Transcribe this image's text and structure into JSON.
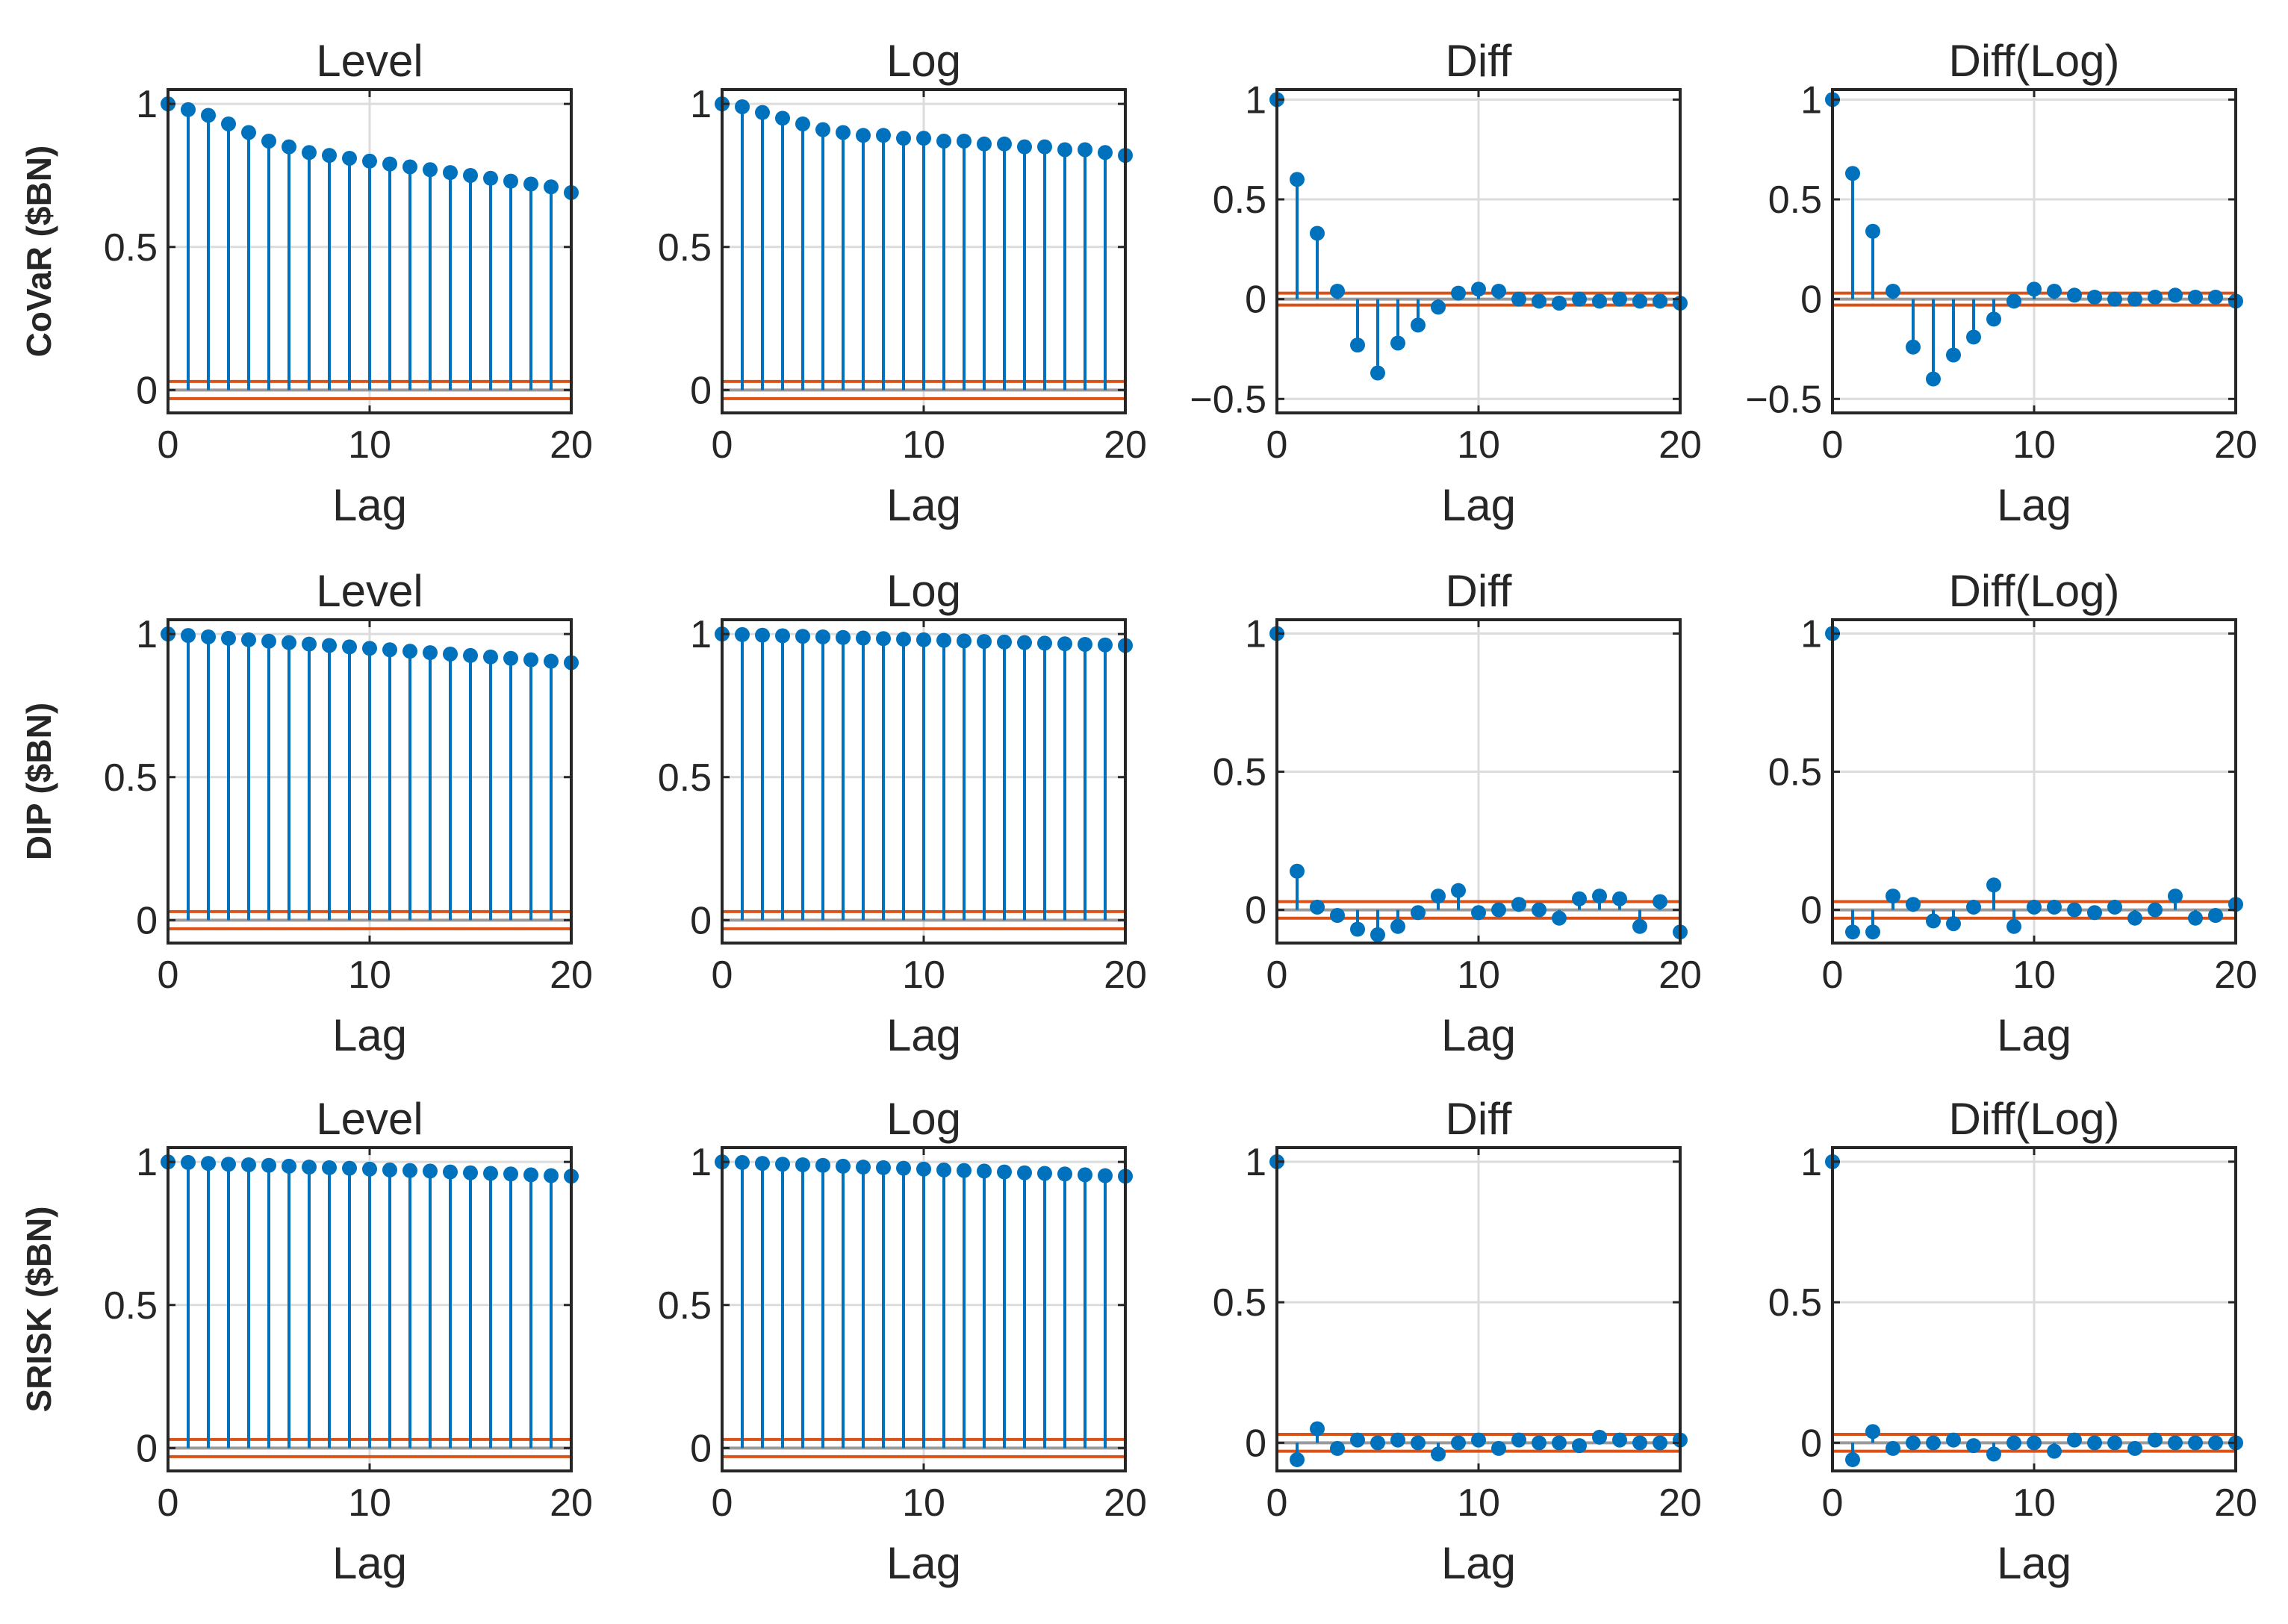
{
  "colors": {
    "stem": "#0072bd",
    "bounds": "#d95319",
    "zero_line": "#9a9a9a",
    "grid": "#dcdcdc",
    "axes": "#262626",
    "background": "#ffffff"
  },
  "chart_data": {
    "type": "stem",
    "layout": "3x4 grid of autocorrelation (stem) plots",
    "xlabel": "Lag",
    "xlim": [
      0,
      20
    ],
    "xticks": [
      0,
      10,
      20
    ],
    "x": [
      0,
      1,
      2,
      3,
      4,
      5,
      6,
      7,
      8,
      9,
      10,
      11,
      12,
      13,
      14,
      15,
      16,
      17,
      18,
      19,
      20
    ],
    "grid": true,
    "rows": [
      {
        "label": "CoVaR ($BN)",
        "panels": [
          {
            "title": "Level",
            "ylim": [
              -0.08,
              1.05
            ],
            "yticks": [
              0,
              0.5,
              1
            ],
            "ytick_labels": [
              "0",
              "0.5",
              "1"
            ],
            "bounds": [
              0.03,
              -0.03
            ],
            "values": [
              1.0,
              0.98,
              0.96,
              0.93,
              0.9,
              0.87,
              0.85,
              0.83,
              0.82,
              0.81,
              0.8,
              0.79,
              0.78,
              0.77,
              0.76,
              0.75,
              0.74,
              0.73,
              0.72,
              0.71,
              0.69
            ]
          },
          {
            "title": "Log",
            "ylim": [
              -0.08,
              1.05
            ],
            "yticks": [
              0,
              0.5,
              1
            ],
            "ytick_labels": [
              "0",
              "0.5",
              "1"
            ],
            "bounds": [
              0.03,
              -0.03
            ],
            "values": [
              1.0,
              0.99,
              0.97,
              0.95,
              0.93,
              0.91,
              0.9,
              0.89,
              0.89,
              0.88,
              0.88,
              0.87,
              0.87,
              0.86,
              0.86,
              0.85,
              0.85,
              0.84,
              0.84,
              0.83,
              0.82
            ]
          },
          {
            "title": "Diff",
            "ylim": [
              -0.57,
              1.05
            ],
            "yticks": [
              -0.5,
              0,
              0.5,
              1
            ],
            "ytick_labels": [
              "−0.5",
              "0",
              "0.5",
              "1"
            ],
            "bounds": [
              0.03,
              -0.03
            ],
            "values": [
              1.0,
              0.6,
              0.33,
              0.04,
              -0.23,
              -0.37,
              -0.22,
              -0.13,
              -0.04,
              0.03,
              0.05,
              0.04,
              0.0,
              -0.01,
              -0.02,
              0.0,
              -0.01,
              0.0,
              -0.01,
              -0.01,
              -0.02
            ]
          },
          {
            "title": "Diff(Log)",
            "ylim": [
              -0.57,
              1.05
            ],
            "yticks": [
              -0.5,
              0,
              0.5,
              1
            ],
            "ytick_labels": [
              "−0.5",
              "0",
              "0.5",
              "1"
            ],
            "bounds": [
              0.03,
              -0.03
            ],
            "values": [
              1.0,
              0.63,
              0.34,
              0.04,
              -0.24,
              -0.4,
              -0.28,
              -0.19,
              -0.1,
              -0.01,
              0.05,
              0.04,
              0.02,
              0.01,
              0.0,
              0.0,
              0.01,
              0.02,
              0.01,
              0.01,
              -0.01
            ]
          }
        ]
      },
      {
        "label": "DIP ($BN)",
        "panels": [
          {
            "title": "Level",
            "ylim": [
              -0.08,
              1.05
            ],
            "yticks": [
              0,
              0.5,
              1
            ],
            "ytick_labels": [
              "0",
              "0.5",
              "1"
            ],
            "bounds": [
              0.03,
              -0.03
            ],
            "values": [
              1.0,
              0.995,
              0.99,
              0.985,
              0.98,
              0.975,
              0.97,
              0.965,
              0.96,
              0.955,
              0.95,
              0.945,
              0.94,
              0.935,
              0.93,
              0.925,
              0.92,
              0.915,
              0.91,
              0.905,
              0.9
            ]
          },
          {
            "title": "Log",
            "ylim": [
              -0.08,
              1.05
            ],
            "yticks": [
              0,
              0.5,
              1
            ],
            "ytick_labels": [
              "0",
              "0.5",
              "1"
            ],
            "bounds": [
              0.03,
              -0.03
            ],
            "values": [
              1.0,
              0.998,
              0.996,
              0.994,
              0.992,
              0.99,
              0.988,
              0.986,
              0.984,
              0.982,
              0.98,
              0.978,
              0.976,
              0.974,
              0.972,
              0.97,
              0.968,
              0.966,
              0.964,
              0.962,
              0.96
            ]
          },
          {
            "title": "Diff",
            "ylim": [
              -0.12,
              1.05
            ],
            "yticks": [
              0,
              0.5,
              1
            ],
            "ytick_labels": [
              "0",
              "0.5",
              "1"
            ],
            "bounds": [
              0.03,
              -0.03
            ],
            "values": [
              1.0,
              0.14,
              0.01,
              -0.02,
              -0.07,
              -0.09,
              -0.06,
              -0.01,
              0.05,
              0.07,
              -0.01,
              0.0,
              0.02,
              0.0,
              -0.03,
              0.04,
              0.05,
              0.04,
              -0.06,
              0.03,
              -0.08
            ]
          },
          {
            "title": "Diff(Log)",
            "ylim": [
              -0.12,
              1.05
            ],
            "yticks": [
              0,
              0.5,
              1
            ],
            "ytick_labels": [
              "0",
              "0.5",
              "1"
            ],
            "bounds": [
              0.03,
              -0.03
            ],
            "values": [
              1.0,
              -0.08,
              -0.08,
              0.05,
              0.02,
              -0.04,
              -0.05,
              0.01,
              0.09,
              -0.06,
              0.01,
              0.01,
              0.0,
              -0.01,
              0.01,
              -0.03,
              0.0,
              0.05,
              -0.03,
              -0.02,
              0.02
            ]
          }
        ]
      },
      {
        "label": "SRISK ($BN)",
        "panels": [
          {
            "title": "Level",
            "ylim": [
              -0.08,
              1.05
            ],
            "yticks": [
              0,
              0.5,
              1
            ],
            "ytick_labels": [
              "0",
              "0.5",
              "1"
            ],
            "bounds": [
              0.03,
              -0.03
            ],
            "values": [
              1.0,
              0.998,
              0.995,
              0.992,
              0.99,
              0.988,
              0.985,
              0.982,
              0.98,
              0.978,
              0.975,
              0.972,
              0.97,
              0.968,
              0.965,
              0.962,
              0.96,
              0.958,
              0.955,
              0.952,
              0.95
            ]
          },
          {
            "title": "Log",
            "ylim": [
              -0.08,
              1.05
            ],
            "yticks": [
              0,
              0.5,
              1
            ],
            "ytick_labels": [
              "0",
              "0.5",
              "1"
            ],
            "bounds": [
              0.03,
              -0.03
            ],
            "values": [
              1.0,
              0.998,
              0.995,
              0.992,
              0.99,
              0.988,
              0.985,
              0.982,
              0.98,
              0.978,
              0.975,
              0.972,
              0.97,
              0.968,
              0.965,
              0.962,
              0.96,
              0.958,
              0.955,
              0.952,
              0.95
            ]
          },
          {
            "title": "Diff",
            "ylim": [
              -0.1,
              1.05
            ],
            "yticks": [
              0,
              0.5,
              1
            ],
            "ytick_labels": [
              "0",
              "0.5",
              "1"
            ],
            "bounds": [
              0.03,
              -0.03
            ],
            "values": [
              1.0,
              -0.06,
              0.05,
              -0.02,
              0.01,
              0.0,
              0.01,
              0.0,
              -0.04,
              0.0,
              0.01,
              -0.02,
              0.01,
              0.0,
              0.0,
              -0.01,
              0.02,
              0.01,
              0.0,
              0.0,
              0.01
            ]
          },
          {
            "title": "Diff(Log)",
            "ylim": [
              -0.1,
              1.05
            ],
            "yticks": [
              0,
              0.5,
              1
            ],
            "ytick_labels": [
              "0",
              "0.5",
              "1"
            ],
            "bounds": [
              0.03,
              -0.03
            ],
            "values": [
              1.0,
              -0.06,
              0.04,
              -0.02,
              0.0,
              0.0,
              0.01,
              -0.01,
              -0.04,
              0.0,
              0.0,
              -0.03,
              0.01,
              0.0,
              0.0,
              -0.02,
              0.01,
              0.0,
              0.0,
              0.0,
              0.0
            ]
          }
        ]
      }
    ]
  }
}
